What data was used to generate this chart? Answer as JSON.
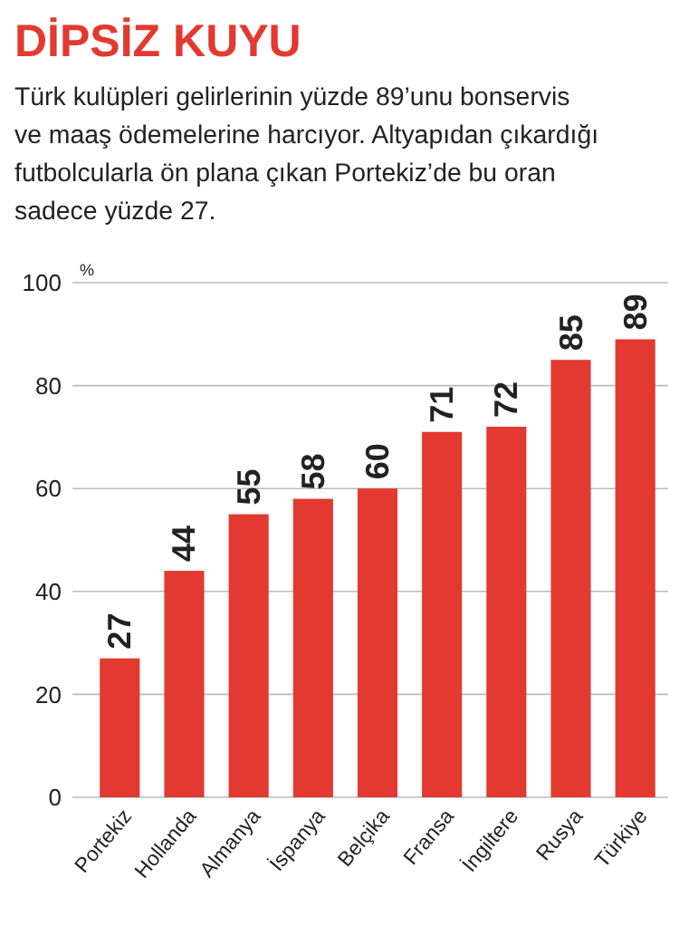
{
  "chart_data": {
    "type": "bar",
    "title": "DİPSİZ KUYU",
    "subtitle": "Türk kulüpleri gelirlerinin yüzde 89’unu bonservis ve maaş ödemelerine harcıyor. Altyapıdan çıkardığı futbolcularla ön plana çıkan Portekiz’de bu oran sadece yüzde 27.",
    "ylabel": "%",
    "categories": [
      "Portekiz",
      "Hollanda",
      "Almanya",
      "İspanya",
      "Belçika",
      "Fransa",
      "İngiltere",
      "Rusya",
      "Türkiye"
    ],
    "values": [
      27,
      44,
      55,
      58,
      60,
      71,
      72,
      85,
      89
    ],
    "color": "#e23a30",
    "ylim": [
      0,
      100
    ],
    "yticks": [
      0,
      20,
      40,
      60,
      80,
      100
    ],
    "grid": "y",
    "data_labels": true
  }
}
